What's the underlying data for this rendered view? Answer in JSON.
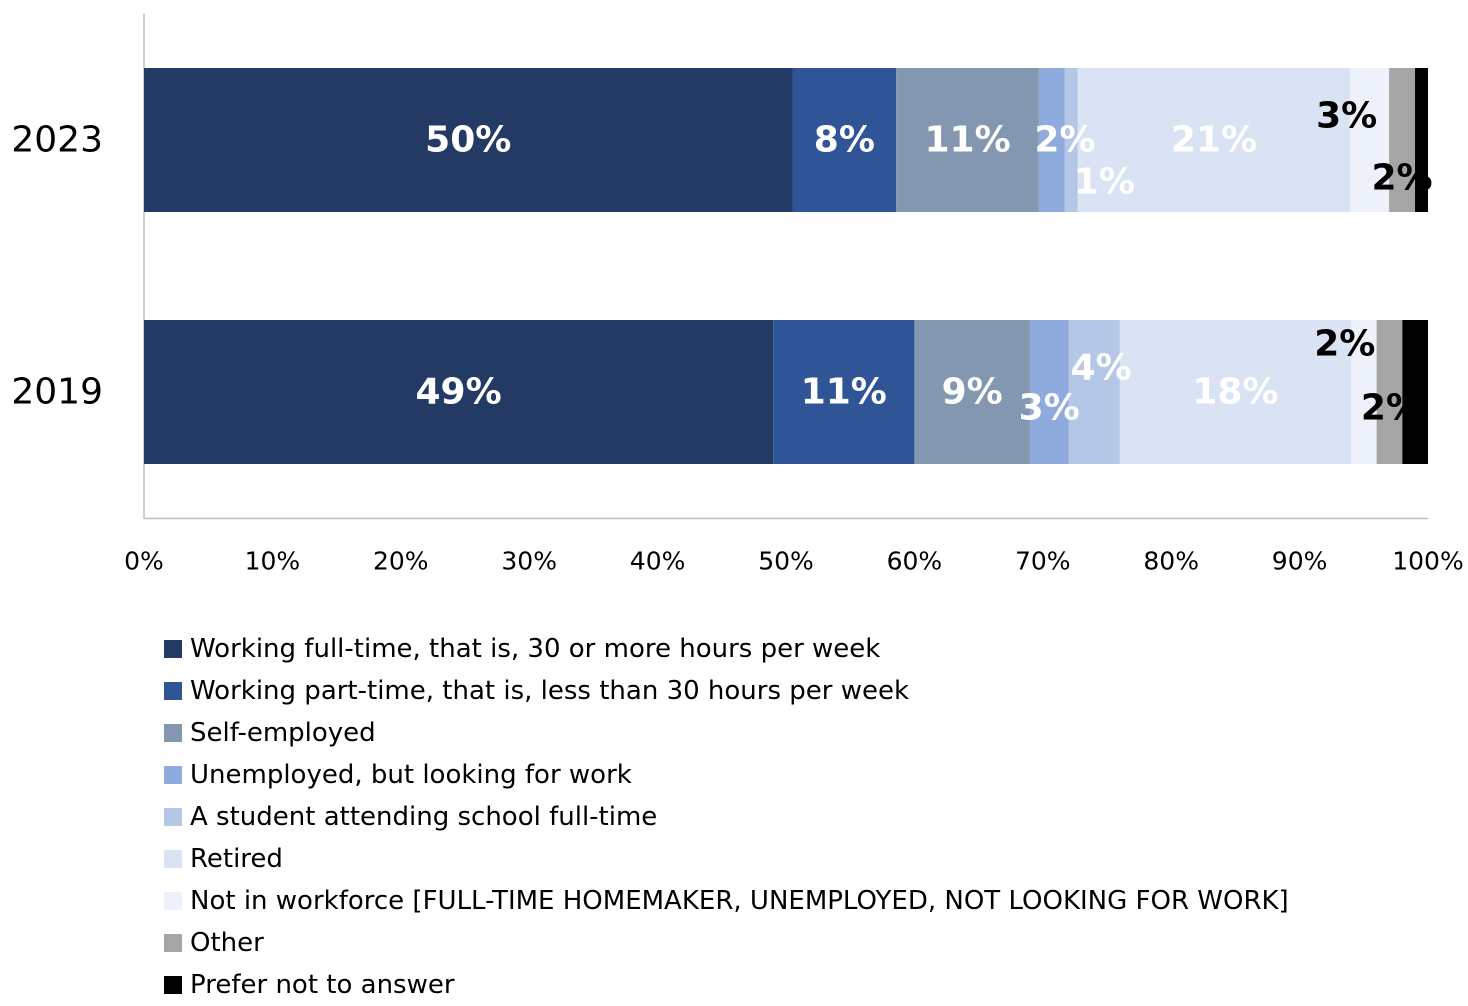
{
  "chart_data": {
    "type": "bar",
    "orientation": "horizontal",
    "stacked": true,
    "title": "",
    "xlabel": "",
    "ylabel": "",
    "xlim": [
      0,
      100
    ],
    "x_ticks": [
      "0%",
      "10%",
      "20%",
      "30%",
      "40%",
      "50%",
      "60%",
      "70%",
      "80%",
      "90%",
      "100%"
    ],
    "grid": false,
    "legend_position": "bottom",
    "categories": [
      "2023",
      "2019"
    ],
    "series": [
      {
        "name": "Working full-time, that is, 30 or more hours per week",
        "color": "#233a64",
        "label_color": "#ffffff",
        "values": [
          50,
          49
        ],
        "labels": [
          "50%",
          "49%"
        ]
      },
      {
        "name": "Working part-time, that is, less than 30 hours per week",
        "color": "#2f5597",
        "label_color": "#ffffff",
        "values": [
          8,
          11
        ],
        "labels": [
          "8%",
          "11%"
        ]
      },
      {
        "name": "Self-employed",
        "color": "#8497b0",
        "label_color": "#ffffff",
        "values": [
          11,
          9
        ],
        "labels": [
          "11%",
          "9%"
        ]
      },
      {
        "name": "Unemployed, but looking for work",
        "color": "#8faadc",
        "label_color": "#ffffff",
        "values": [
          2,
          3
        ],
        "labels": [
          "2%",
          "3%"
        ]
      },
      {
        "name": "A student attending school full-time",
        "color": "#b4c7e7",
        "label_color": "#ffffff",
        "values": [
          1,
          4
        ],
        "labels": [
          "1%",
          "4%"
        ]
      },
      {
        "name": "Retired",
        "color": "#dae3f3",
        "label_color": "#ffffff",
        "values": [
          21,
          18
        ],
        "labels": [
          "21%",
          "18%"
        ]
      },
      {
        "name": "Not in workforce [FULL-TIME HOMEMAKER, UNEMPLOYED, NOT LOOKING FOR WORK]",
        "color": "#edf1f9",
        "label_color": "#000000",
        "values": [
          3,
          2
        ],
        "labels": [
          "3%",
          "2%"
        ]
      },
      {
        "name": "Other",
        "color": "#a5a5a5",
        "label_color": "#000000",
        "values": [
          2,
          2
        ],
        "labels": [
          "2%",
          "2%"
        ]
      },
      {
        "name": "Prefer not to answer",
        "color": "#000000",
        "label_color": "#ffffff",
        "values": [
          1,
          2
        ],
        "labels": [
          "",
          ""
        ]
      }
    ]
  }
}
